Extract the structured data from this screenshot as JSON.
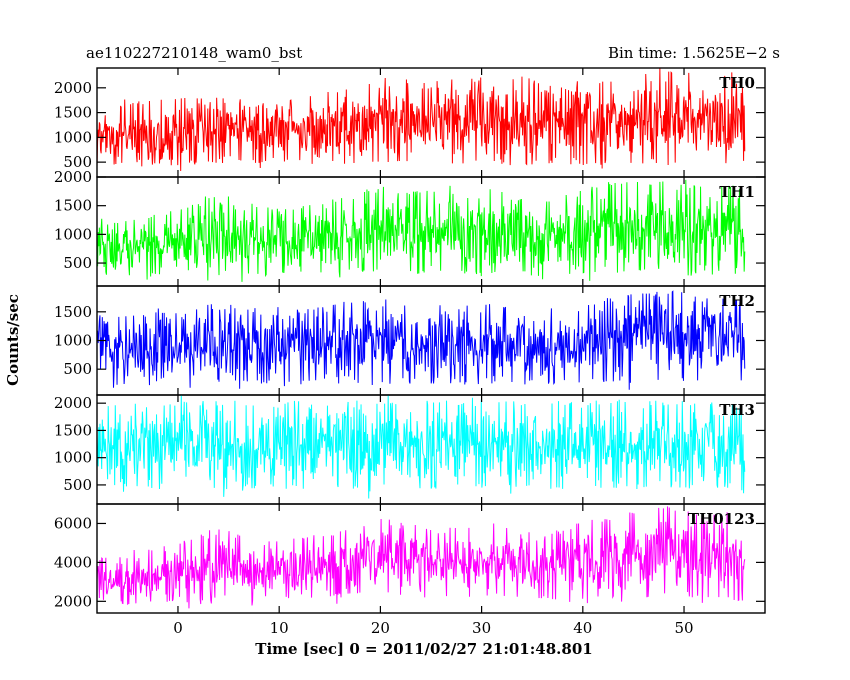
{
  "chart_data": {
    "type": "line",
    "title_left": "ae110227210148_wam0_bst",
    "title_right": "Bin time: 1.5625E−2 s",
    "xlabel": "Time [sec] 0 = 2011/02/27 21:01:48.801",
    "ylabel": "Counts/sec",
    "xlim": [
      -8.0,
      58.0
    ],
    "data_x_range": [
      -8.0,
      56.0
    ],
    "x_ticks": [
      0,
      10,
      20,
      30,
      40,
      50
    ],
    "grid": false,
    "series": [
      {
        "name": "TH0",
        "color": "#ff0000",
        "ylim": [
          200,
          2400
        ],
        "y_ticks": [
          500,
          1000,
          1500,
          2000
        ],
        "envelope": {
          "x": [
            -8,
            -4,
            0,
            4,
            8,
            12,
            16,
            20,
            24,
            28,
            32,
            36,
            40,
            44,
            48,
            52,
            56
          ],
          "low": [
            400,
            400,
            420,
            430,
            420,
            430,
            450,
            460,
            440,
            440,
            450,
            430,
            430,
            450,
            470,
            430,
            430
          ],
          "high": [
            1550,
            1750,
            1800,
            1850,
            1800,
            1750,
            1950,
            2300,
            2150,
            2200,
            2250,
            2150,
            2250,
            2200,
            2400,
            2350,
            2350
          ]
        }
      },
      {
        "name": "TH1",
        "color": "#00ff00",
        "ylim": [
          100,
          2000
        ],
        "y_ticks": [
          500,
          1000,
          1500,
          2000
        ],
        "envelope": {
          "x": [
            -8,
            -4,
            0,
            4,
            8,
            12,
            16,
            20,
            24,
            28,
            32,
            36,
            40,
            44,
            48,
            52,
            56
          ],
          "low": [
            250,
            250,
            270,
            280,
            270,
            290,
            300,
            300,
            290,
            290,
            300,
            270,
            280,
            310,
            320,
            290,
            270
          ],
          "high": [
            1150,
            1300,
            1450,
            1750,
            1500,
            1500,
            1650,
            1850,
            1750,
            1750,
            1750,
            1600,
            1800,
            1950,
            1950,
            1850,
            1850
          ]
        }
      },
      {
        "name": "TH2",
        "color": "#0000ff",
        "ylim": [
          50,
          1950
        ],
        "y_ticks": [
          500,
          1000,
          1500
        ],
        "envelope": {
          "x": [
            -8,
            -4,
            0,
            4,
            8,
            12,
            16,
            20,
            24,
            28,
            32,
            36,
            40,
            44,
            48,
            52,
            56
          ],
          "low": [
            200,
            210,
            230,
            240,
            230,
            230,
            250,
            240,
            230,
            230,
            240,
            220,
            230,
            250,
            260,
            230,
            220
          ],
          "high": [
            1350,
            1500,
            1500,
            1700,
            1500,
            1550,
            1700,
            1750,
            1550,
            1600,
            1650,
            1500,
            1650,
            1800,
            1900,
            1800,
            1750
          ]
        }
      },
      {
        "name": "TH3",
        "color": "#00ffff",
        "ylim": [
          150,
          2150
        ],
        "y_ticks": [
          500,
          1000,
          1500,
          2000
        ],
        "envelope": {
          "x": [
            -8,
            -4,
            0,
            4,
            8,
            12,
            16,
            20,
            24,
            28,
            32,
            36,
            40,
            44,
            48,
            52,
            56
          ],
          "low": [
            400,
            420,
            430,
            420,
            430,
            420,
            430,
            420,
            430,
            420,
            430,
            420,
            430,
            420,
            430,
            420,
            420
          ],
          "high": [
            1950,
            2000,
            2050,
            2050,
            2000,
            2050,
            2050,
            2050,
            2050,
            2050,
            2050,
            2050,
            2050,
            2050,
            2050,
            2050,
            2050
          ]
        }
      },
      {
        "name": "TH0123",
        "color": "#ff00ff",
        "ylim": [
          1400,
          7000
        ],
        "y_ticks": [
          2000,
          4000,
          6000
        ],
        "envelope": {
          "x": [
            -8,
            -4,
            0,
            4,
            8,
            12,
            16,
            20,
            24,
            28,
            32,
            36,
            40,
            44,
            48,
            52,
            56
          ],
          "low": [
            1700,
            1800,
            1900,
            2000,
            2000,
            2100,
            2300,
            2300,
            2200,
            2200,
            2300,
            2100,
            2100,
            2100,
            2200,
            2000,
            1900
          ],
          "high": [
            4200,
            4600,
            5000,
            5800,
            5200,
            5300,
            5600,
            6300,
            5800,
            5900,
            5800,
            5500,
            6100,
            6500,
            7000,
            6600,
            6600
          ]
        }
      }
    ]
  }
}
